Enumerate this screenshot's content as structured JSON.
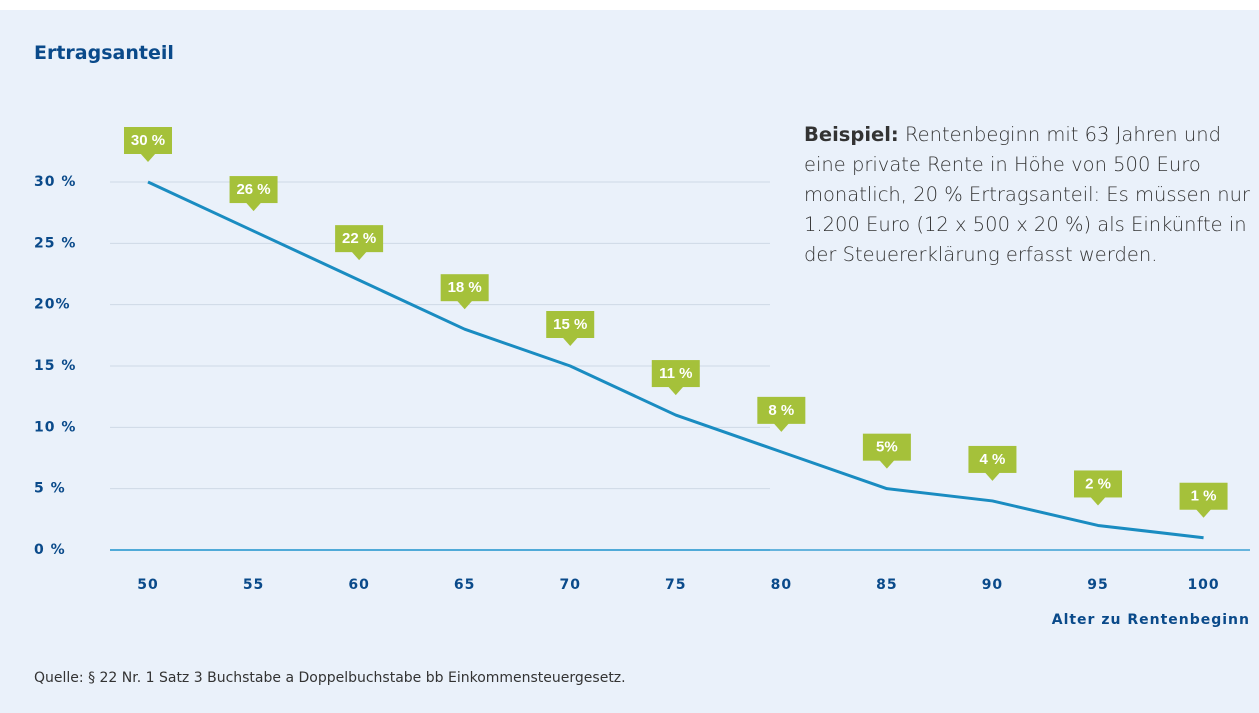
{
  "chart_data": {
    "type": "line",
    "title": "Ertragsanteil",
    "x": [
      50,
      55,
      60,
      65,
      70,
      75,
      80,
      85,
      90,
      95,
      100
    ],
    "values": [
      30,
      26,
      22,
      18,
      15,
      11,
      8,
      5,
      4,
      2,
      1
    ],
    "value_labels": [
      "30 %",
      "26 %",
      "22 %",
      "18 %",
      "15 %",
      "11 %",
      "8 %",
      "5%",
      "4 %",
      "2 %",
      "1 %"
    ],
    "color": "#1a8cc1",
    "label_color": "#a5c13a",
    "xlim": [
      48.2,
      102.2
    ],
    "xticks": [
      50,
      55,
      60,
      65,
      70,
      75,
      80,
      85,
      90,
      95,
      100
    ],
    "ylim": [
      0,
      30
    ],
    "yticks": [
      {
        "value": 0,
        "label": "0 %"
      },
      {
        "value": 5,
        "label": "5 %"
      },
      {
        "value": 10,
        "label": "10 %"
      },
      {
        "value": 15,
        "label": "15 %"
      },
      {
        "value": 20,
        "label": "20%"
      },
      {
        "value": 25,
        "label": "25 %"
      },
      {
        "value": 30,
        "label": "30 %"
      }
    ],
    "grid": true,
    "x_label": "Alter zu Rentenbeginn",
    "annotation": {
      "bold": "Beispiel:",
      "text": "Rentenbeginn mit 63 Jahren und eine private Rente in Höhe von 500 Euro monatlich, 20 % Ertragsanteil: Es müssen nur 1.200 Euro (12 x 500 x 20 %) als Einkünfte in der Steuererklärung erfasst werden."
    },
    "source": "Quelle: § 22 Nr. 1 Satz 3 Buchstabe a Doppelbuchstabe bb Einkommensteuergesetz."
  }
}
